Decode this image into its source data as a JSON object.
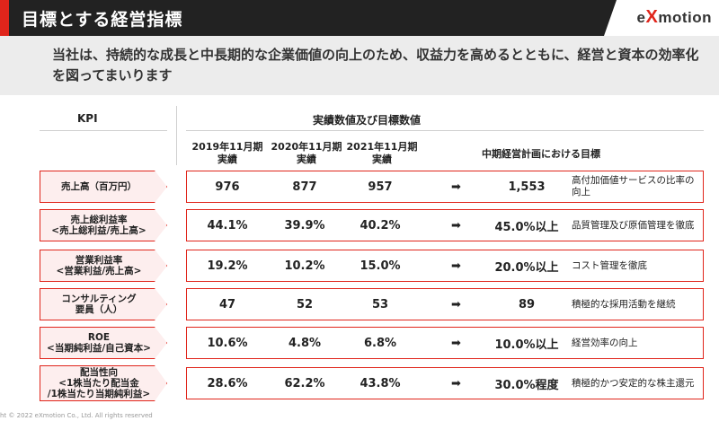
{
  "header": {
    "title": "目標とする経営指標",
    "logo": {
      "pre": "e",
      "x": "X",
      "post": "motion"
    }
  },
  "lead": "当社は、持続的な成長と中長期的な企業価値の向上のため、収益力を高めるとともに、経営と資本の効率化を図ってまいります",
  "table": {
    "kpi_header": "KPI",
    "values_header": "実績数値及び目標数値",
    "years": [
      {
        "year": "2019年11月期",
        "sub": "実績"
      },
      {
        "year": "2020年11月期",
        "sub": "実績"
      },
      {
        "year": "2021年11月期",
        "sub": "実績"
      }
    ],
    "plan_header": "中期経営計画における目標",
    "arrow": "➡",
    "rows": [
      {
        "label1": "売上高（百万円）",
        "label2": "",
        "label3": "",
        "v2019": "976",
        "v2020": "877",
        "v2021": "957",
        "target": "1,553",
        "desc": "高付加価値サービスの比率の向上"
      },
      {
        "label1": "売上総利益率",
        "label2": "<売上総利益/売上高>",
        "label3": "",
        "v2019": "44.1%",
        "v2020": "39.9%",
        "v2021": "40.2%",
        "target": "45.0%以上",
        "desc": "品質管理及び原価管理を徹底"
      },
      {
        "label1": "営業利益率",
        "label2": "<営業利益/売上高>",
        "label3": "",
        "v2019": "19.2%",
        "v2020": "10.2%",
        "v2021": "15.0%",
        "target": "20.0%以上",
        "desc": "コスト管理を徹底"
      },
      {
        "label1": "コンサルティング",
        "label2": "要員（人）",
        "label3": "",
        "v2019": "47",
        "v2020": "52",
        "v2021": "53",
        "target": "89",
        "desc": "積極的な採用活動を継続"
      },
      {
        "label1": "ROE",
        "label2": "<当期純利益/自己資本>",
        "label3": "",
        "v2019": "10.6%",
        "v2020": "4.8%",
        "v2021": "6.8%",
        "target": "10.0%以上",
        "desc": "経営効率の向上"
      },
      {
        "label1": "配当性向",
        "label2": "<1株当たり配当金",
        "label3": "/1株当たり当期純利益>",
        "v2019": "28.6%",
        "v2020": "62.2%",
        "v2021": "43.8%",
        "target": "30.0%程度",
        "desc": "積極的かつ安定的な株主還元"
      }
    ]
  },
  "footer": "ht © 2022 eXmotion Co., Ltd. All rights reserved"
}
